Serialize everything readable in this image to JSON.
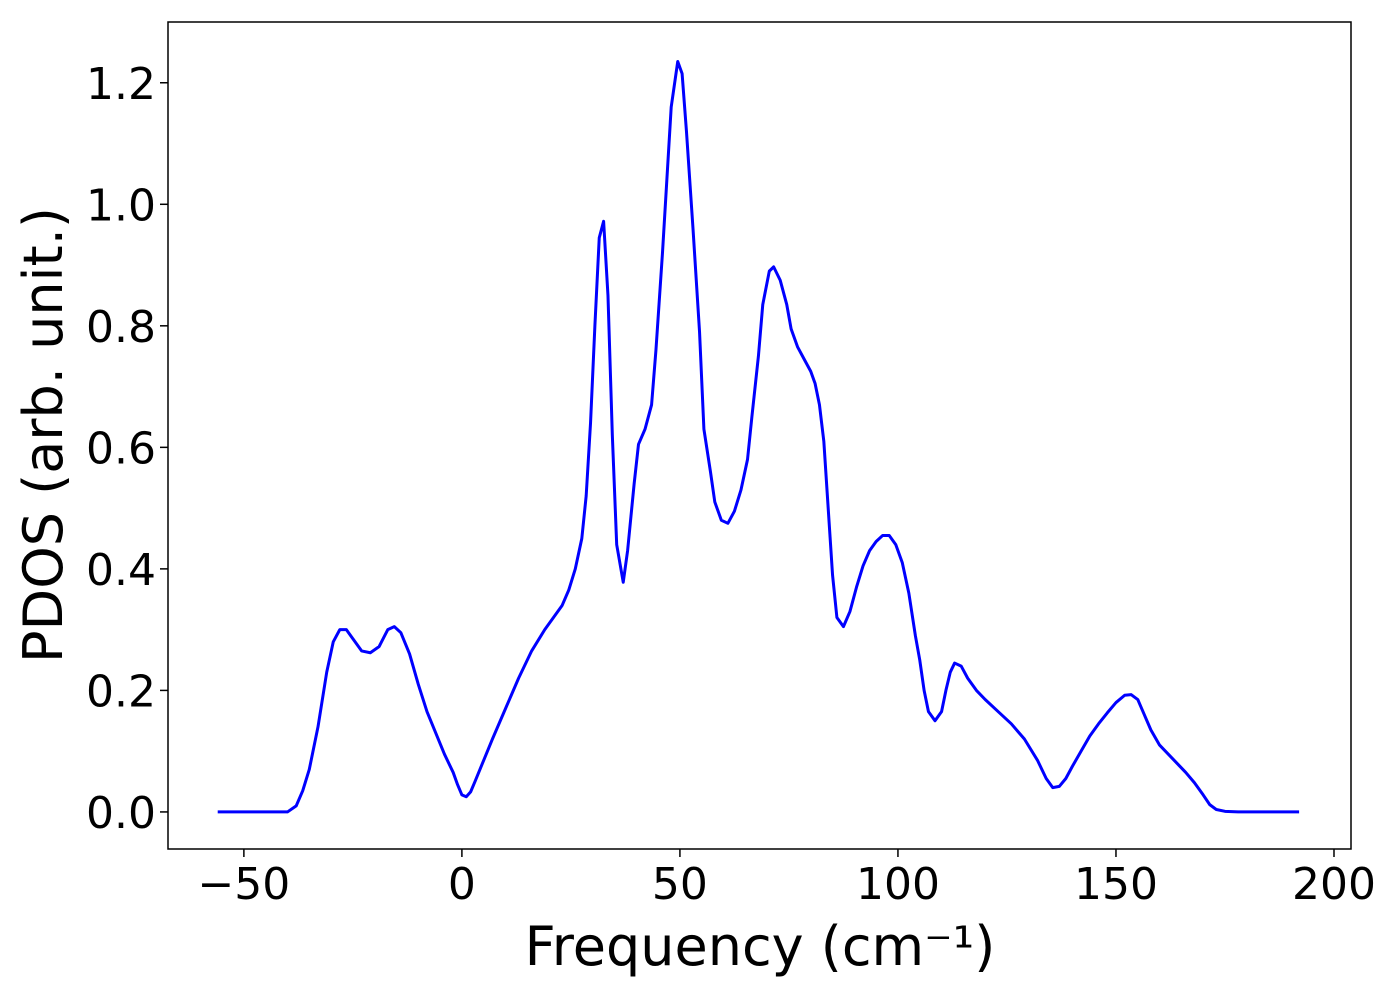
{
  "chart_data": {
    "type": "line",
    "xlabel": "Frequency (cm⁻¹)",
    "ylabel": "PDOS (arb. unit.)",
    "color": "#0000ff",
    "xlim": [
      -67.4,
      203.9
    ],
    "ylim": [
      -0.061,
      1.3
    ],
    "xticks": [
      {
        "value": -50,
        "label": "−50"
      },
      0,
      50,
      100,
      150,
      200
    ],
    "yticks": [
      {
        "value": 0,
        "label": "0.0"
      },
      0.2,
      0.4,
      0.6,
      0.8,
      {
        "value": 1,
        "label": "1.0"
      },
      1.2
    ],
    "x": [
      -56,
      -40,
      -38,
      -36.5,
      -35,
      -33,
      -31,
      -29.5,
      -28,
      -26.5,
      -25,
      -23,
      -21,
      -19,
      -17,
      -15.5,
      -14,
      -12,
      -10,
      -8,
      -6,
      -4,
      -2,
      -1,
      0,
      1,
      2,
      3,
      5,
      7,
      10,
      13,
      16,
      19,
      21,
      23,
      24.5,
      26,
      27.5,
      28.5,
      29.5,
      30.5,
      31.5,
      32.5,
      33.5,
      34.5,
      35.5,
      37,
      38,
      39.5,
      40.5,
      42,
      43.5,
      44.5,
      46,
      47,
      48,
      49.5,
      50.5,
      51.5,
      53,
      54.5,
      55.5,
      57,
      58,
      59.5,
      61,
      62.5,
      64,
      65.5,
      66.5,
      68,
      69,
      70.5,
      71.5,
      73,
      74.5,
      75.5,
      77,
      78.5,
      80,
      81,
      82,
      83,
      84,
      85,
      86,
      87.5,
      89,
      90.5,
      92,
      93.5,
      95,
      96.5,
      98,
      99.5,
      101,
      102.5,
      104,
      105,
      106,
      107,
      108.5,
      110,
      111,
      112,
      113,
      114.5,
      116,
      118,
      120,
      123,
      126,
      129,
      132,
      134,
      135.5,
      137,
      138.5,
      140,
      142,
      144,
      146,
      148,
      150,
      152,
      153.5,
      155,
      156.5,
      158,
      160,
      162,
      164,
      166,
      168,
      170,
      171.5,
      173,
      175,
      178,
      192
    ],
    "values": [
      0,
      0,
      0.01,
      0.035,
      0.07,
      0.14,
      0.23,
      0.28,
      0.3,
      0.3,
      0.285,
      0.265,
      0.262,
      0.272,
      0.3,
      0.305,
      0.295,
      0.26,
      0.21,
      0.165,
      0.13,
      0.095,
      0.065,
      0.045,
      0.028,
      0.025,
      0.033,
      0.05,
      0.085,
      0.12,
      0.17,
      0.22,
      0.265,
      0.3,
      0.32,
      0.34,
      0.365,
      0.4,
      0.45,
      0.52,
      0.64,
      0.8,
      0.945,
      0.972,
      0.85,
      0.62,
      0.44,
      0.378,
      0.43,
      0.54,
      0.605,
      0.63,
      0.67,
      0.76,
      0.92,
      1.04,
      1.16,
      1.235,
      1.215,
      1.12,
      0.96,
      0.79,
      0.63,
      0.56,
      0.51,
      0.48,
      0.475,
      0.495,
      0.53,
      0.58,
      0.65,
      0.75,
      0.835,
      0.89,
      0.897,
      0.875,
      0.835,
      0.795,
      0.765,
      0.745,
      0.725,
      0.705,
      0.67,
      0.61,
      0.5,
      0.39,
      0.32,
      0.305,
      0.33,
      0.37,
      0.405,
      0.43,
      0.445,
      0.455,
      0.455,
      0.44,
      0.41,
      0.36,
      0.29,
      0.25,
      0.2,
      0.165,
      0.15,
      0.165,
      0.2,
      0.23,
      0.245,
      0.24,
      0.22,
      0.2,
      0.185,
      0.165,
      0.145,
      0.12,
      0.085,
      0.055,
      0.04,
      0.042,
      0.055,
      0.075,
      0.1,
      0.125,
      0.145,
      0.163,
      0.18,
      0.192,
      0.193,
      0.185,
      0.16,
      0.135,
      0.11,
      0.095,
      0.08,
      0.065,
      0.048,
      0.028,
      0.012,
      0.004,
      0.001,
      0,
      0
    ]
  }
}
